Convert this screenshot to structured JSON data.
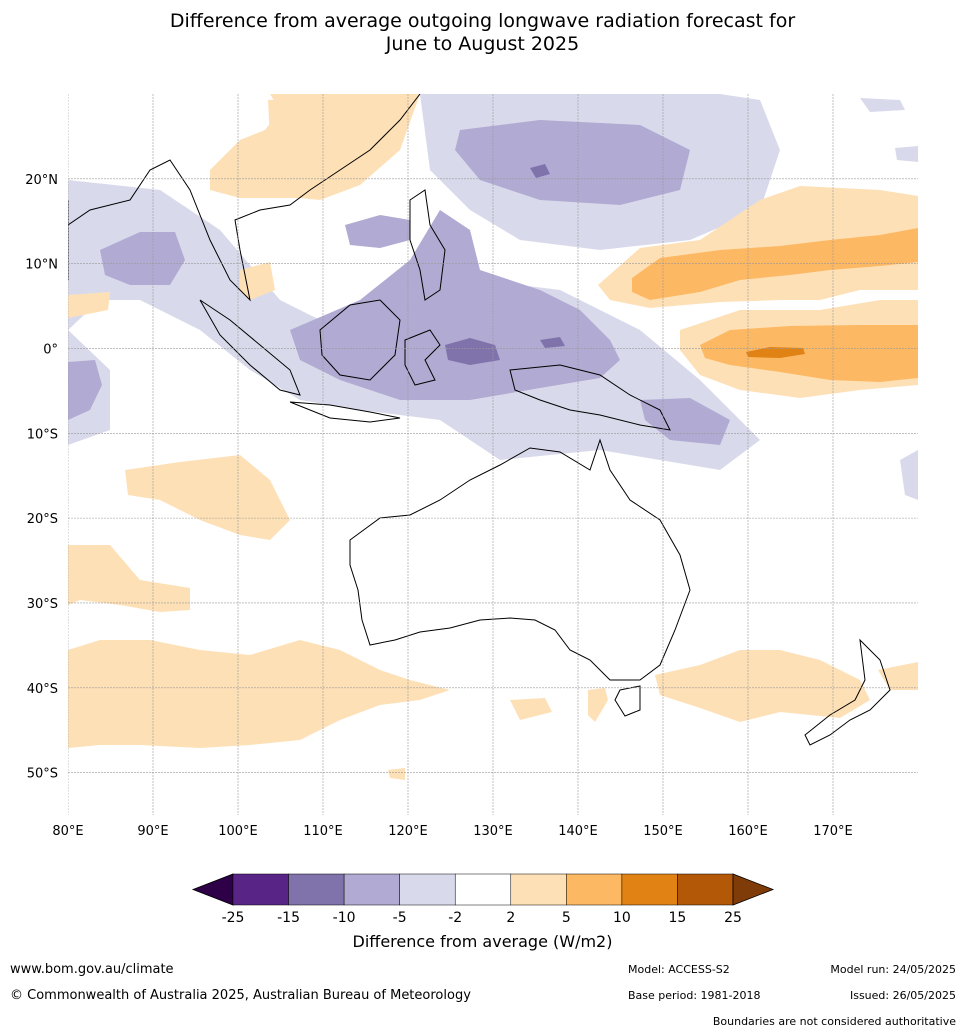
{
  "title": {
    "line1": "Difference from average outgoing longwave radiation forecast for",
    "line2": "June to August 2025"
  },
  "map": {
    "lon_range": [
      80,
      180
    ],
    "lat_range": [
      -55,
      30
    ],
    "lon_ticks": [
      "80°E",
      "90°E",
      "100°E",
      "110°E",
      "120°E",
      "130°E",
      "140°E",
      "150°E",
      "160°E",
      "170°E"
    ],
    "lat_ticks": [
      "20°N",
      "10°N",
      "0°",
      "10°S",
      "20°S",
      "30°S",
      "40°S",
      "50°S"
    ],
    "grid": true
  },
  "legend": {
    "title": "Difference from average (W/m2)",
    "boundaries": [
      "-25",
      "-15",
      "-10",
      "-5",
      "-2",
      "2",
      "5",
      "10",
      "15",
      "25"
    ],
    "colors": [
      "#2d0048",
      "#582586",
      "#8073ac",
      "#b1aad2",
      "#d8daeb",
      "#ffffff",
      "#fee0b6",
      "#fdb863",
      "#e08214",
      "#b35806",
      "#7f3b08"
    ]
  },
  "footer": {
    "url": "www.bom.gov.au/climate",
    "copyright": "© Commonwealth of Australia 2025, Australian Bureau of Meteorology",
    "model": "Model: ACCESS-S2",
    "base_period": "Base period: 1981-2018",
    "model_run": "Model run: 24/05/2025",
    "issued": "Issued: 26/05/2025",
    "disclaimer": "Boundaries are not considered authoritative"
  }
}
